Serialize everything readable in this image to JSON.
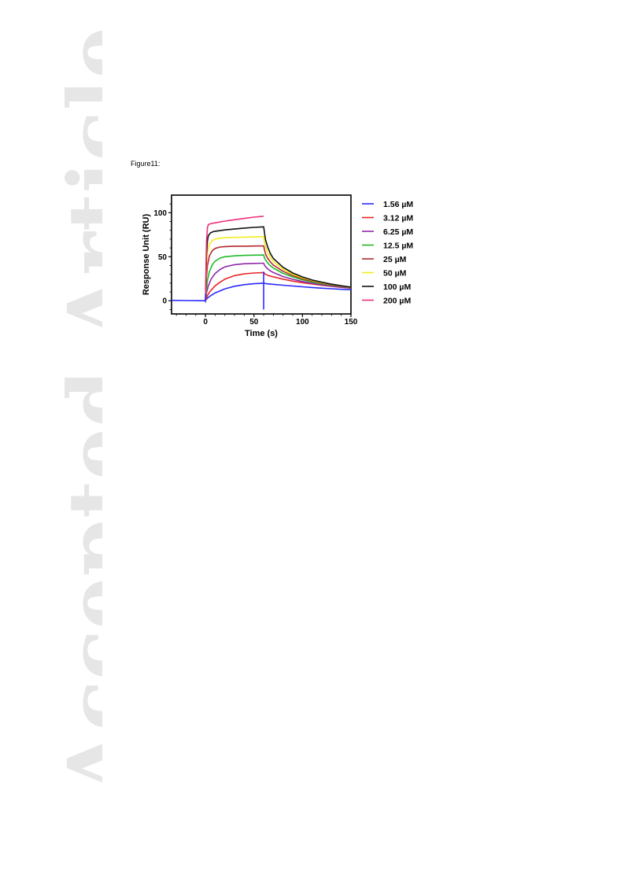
{
  "watermark": "Accepted Article",
  "figure_label": "Figure11:",
  "chart_data": {
    "type": "line",
    "title": "",
    "xlabel": "Time (s)",
    "ylabel": "Response Unit (RU)",
    "xlim": [
      -35,
      150
    ],
    "ylim": [
      -15,
      120
    ],
    "xticks": [
      0,
      50,
      100,
      150
    ],
    "yticks": [
      0,
      50,
      100
    ],
    "grid": false,
    "legend_position": "right",
    "injection_end": 60,
    "series": [
      {
        "name": "1.56 µM",
        "color": "#2a2aff",
        "x": [
          -35,
          -20,
          -5,
          0,
          2,
          5,
          10,
          20,
          30,
          40,
          50,
          60,
          62,
          70,
          80,
          90,
          100,
          110,
          120,
          130,
          140,
          150
        ],
        "y": [
          0.5,
          0.2,
          0,
          0,
          3,
          5.5,
          9,
          13.5,
          16.5,
          18.3,
          19.3,
          20,
          19.5,
          18.6,
          17.6,
          16.7,
          15.8,
          15,
          14.2,
          13.6,
          13,
          12.5
        ]
      },
      {
        "name": "3.12 µM",
        "color": "#e8262a",
        "x": [
          0,
          2,
          5,
          10,
          15,
          20,
          30,
          40,
          50,
          60,
          62,
          65,
          70,
          80,
          90,
          100,
          110,
          120,
          130,
          140,
          150
        ],
        "y": [
          0,
          6,
          11,
          17,
          21,
          24.5,
          28.5,
          30.5,
          31.5,
          32,
          30,
          28.5,
          27.2,
          24.5,
          22.3,
          20.5,
          19,
          17.5,
          16.3,
          15.2,
          14.3
        ]
      },
      {
        "name": "6.25 µM",
        "color": "#8f2aa8",
        "x": [
          0,
          1,
          3,
          6,
          10,
          15,
          20,
          30,
          40,
          50,
          60,
          61,
          63,
          66,
          70,
          80,
          90,
          100,
          110,
          120,
          130,
          140,
          150
        ],
        "y": [
          0,
          9,
          17,
          25,
          31,
          35.5,
          38.5,
          41,
          42,
          42.4,
          42.7,
          40,
          37.5,
          34.5,
          32,
          27.5,
          24.3,
          21.8,
          19.8,
          18,
          16.6,
          15.5,
          14.6
        ]
      },
      {
        "name": "12.5 µM",
        "color": "#1fba2b",
        "x": [
          0,
          1,
          2,
          4,
          7,
          10,
          15,
          20,
          30,
          40,
          50,
          60,
          61,
          63,
          66,
          70,
          80,
          90,
          100,
          110,
          120,
          130,
          140,
          150
        ],
        "y": [
          0,
          14,
          23,
          33,
          41,
          45,
          48.5,
          50,
          51,
          51.5,
          51.8,
          52,
          48,
          44.5,
          40.5,
          37,
          31,
          27,
          23.8,
          21.2,
          19.2,
          17.5,
          16.2,
          15
        ]
      },
      {
        "name": "25 µM",
        "color": "#b4272c",
        "x": [
          0,
          0.5,
          1,
          2,
          4,
          7,
          10,
          15,
          20,
          30,
          40,
          50,
          60,
          61,
          62,
          64,
          67,
          70,
          80,
          90,
          100,
          110,
          120,
          130,
          140,
          150
        ],
        "y": [
          0,
          15,
          27,
          40,
          51,
          57,
          59.5,
          61,
          61.5,
          62,
          62,
          62.2,
          62.3,
          57,
          53,
          48.5,
          44,
          40.5,
          33.5,
          28.5,
          25,
          22.2,
          20,
          18,
          16.5,
          15.2
        ]
      },
      {
        "name": "50 µM",
        "color": "#f3ec1d",
        "x": [
          0,
          0.5,
          1,
          2,
          4,
          7,
          10,
          15,
          20,
          30,
          40,
          50,
          60,
          61,
          62,
          64,
          67,
          70,
          80,
          90,
          100,
          110,
          120,
          130,
          140,
          150
        ],
        "y": [
          0,
          22,
          40,
          55,
          64,
          68.5,
          70,
          71,
          71.5,
          72,
          72.3,
          72.5,
          72.8,
          66,
          61,
          55,
          49,
          44.5,
          36,
          30,
          26,
          23,
          20.5,
          18.5,
          16.7,
          15.3
        ]
      },
      {
        "name": "100 µM",
        "color": "#111111",
        "x": [
          0,
          0.5,
          1,
          2,
          3,
          5,
          8,
          10,
          20,
          30,
          40,
          50,
          60,
          61,
          62,
          64,
          67,
          70,
          80,
          90,
          100,
          110,
          120,
          130,
          140,
          150
        ],
        "y": [
          0,
          30,
          52,
          68,
          74,
          77,
          78.5,
          79,
          80.5,
          81.5,
          82.5,
          83.3,
          84,
          76,
          69,
          61.5,
          53.5,
          48,
          38,
          31.5,
          27,
          23.5,
          21,
          18.8,
          17,
          15.5
        ]
      },
      {
        "name": "200 µM",
        "color": "#ee2f7f",
        "x": [
          0,
          0.5,
          1,
          2,
          3,
          5,
          10,
          20,
          30,
          40,
          50,
          60
        ],
        "y": [
          0,
          40,
          68,
          83,
          86.5,
          87.5,
          88.5,
          90.5,
          92,
          93.5,
          95,
          96
        ]
      }
    ]
  }
}
